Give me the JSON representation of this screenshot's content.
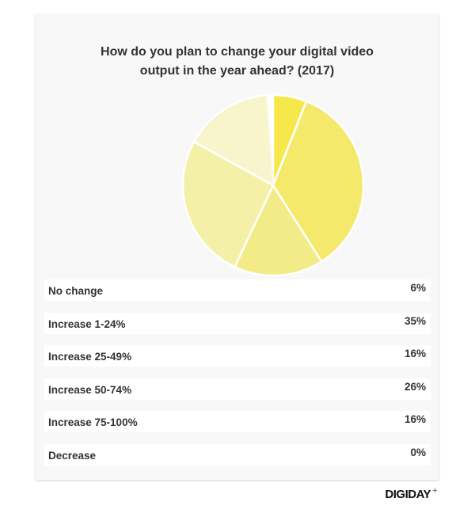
{
  "chart_data": {
    "type": "pie",
    "title": "How do you plan to change your digital video output in the year ahead? (2017)",
    "categories": [
      "No change",
      "Increase 1-24%",
      "Increase 25-49%",
      "Increase 50-74%",
      "Increase 75-100%",
      "Decrease"
    ],
    "values": [
      6,
      35,
      16,
      26,
      16,
      0
    ],
    "labels": [
      "6%",
      "35%",
      "16%",
      "26%",
      "16%",
      "0%"
    ],
    "colors": [
      "#f6e84a",
      "#f4e96a",
      "#f2eb88",
      "#f5f0a8",
      "#f8f5cc",
      "#fbf9e4"
    ],
    "legend": "table below chart"
  },
  "brand": "DIGIDAY",
  "brand_mark": "+"
}
